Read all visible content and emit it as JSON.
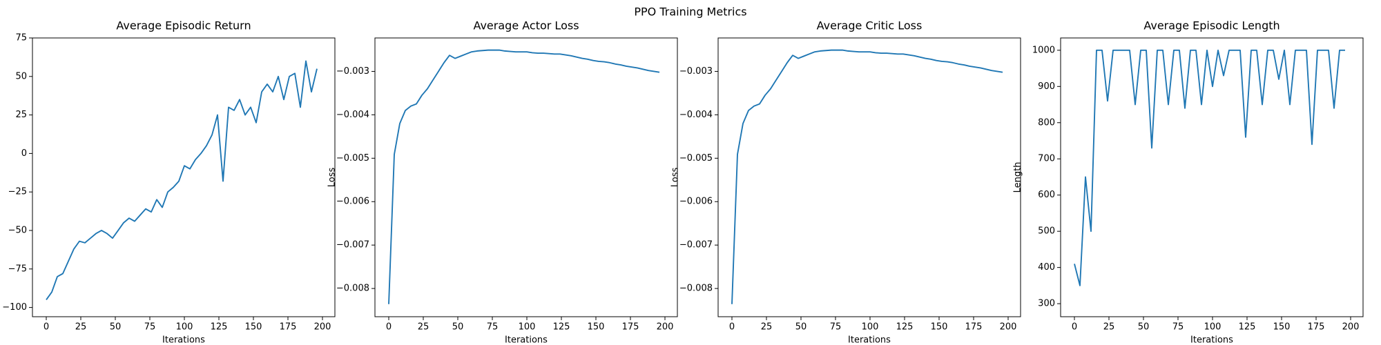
{
  "title": "PPO Training Metrics",
  "chart_data": [
    {
      "type": "line",
      "title": "Average Episodic Return",
      "xlabel": "Iterations",
      "color": "#1f77b4",
      "x": [
        0,
        4,
        8,
        12,
        16,
        20,
        24,
        28,
        32,
        36,
        40,
        44,
        48,
        52,
        56,
        60,
        64,
        68,
        72,
        76,
        80,
        84,
        88,
        92,
        96,
        100,
        104,
        108,
        112,
        116,
        120,
        124,
        128,
        132,
        136,
        140,
        144,
        148,
        152,
        156,
        160,
        164,
        168,
        172,
        176,
        180,
        184,
        188,
        192,
        196
      ],
      "values": [
        -95,
        -90,
        -80,
        -78,
        -70,
        -62,
        -57,
        -58,
        -55,
        -52,
        -50,
        -52,
        -55,
        -50,
        -45,
        -42,
        -44,
        -40,
        -36,
        -38,
        -30,
        -35,
        -25,
        -22,
        -18,
        -8,
        -10,
        -4,
        0,
        5,
        12,
        25,
        -18,
        30,
        28,
        35,
        25,
        30,
        20,
        40,
        45,
        40,
        50,
        35,
        50,
        52,
        30,
        60,
        40,
        55
      ],
      "xlim": [
        -10,
        209
      ],
      "ylim": [
        -106,
        75
      ],
      "xticks": [
        0,
        25,
        50,
        75,
        100,
        125,
        150,
        175,
        200
      ],
      "yticks": [
        {
          "value": -100,
          "label": "−100"
        },
        {
          "value": -75,
          "label": "−75"
        },
        {
          "value": -50,
          "label": "−50"
        },
        {
          "value": -25,
          "label": "−25"
        },
        0,
        25,
        50,
        75
      ]
    },
    {
      "type": "line",
      "title": "Average Actor Loss",
      "xlabel": "Iterations",
      "ylabel": "Loss",
      "color": "#1f77b4",
      "x": [
        0,
        4,
        8,
        12,
        16,
        20,
        24,
        28,
        32,
        36,
        40,
        44,
        48,
        52,
        56,
        60,
        64,
        68,
        72,
        76,
        80,
        84,
        88,
        92,
        96,
        100,
        104,
        108,
        112,
        116,
        120,
        124,
        128,
        132,
        136,
        140,
        144,
        148,
        152,
        156,
        160,
        164,
        168,
        172,
        176,
        180,
        184,
        188,
        192,
        196
      ],
      "values": [
        -0.00836,
        -0.00491,
        -0.0042,
        -0.0039,
        -0.0038,
        -0.00375,
        -0.00355,
        -0.0034,
        -0.0032,
        -0.003,
        -0.0028,
        -0.00263,
        -0.0027,
        -0.00265,
        -0.0026,
        -0.00255,
        -0.00253,
        -0.00252,
        -0.00251,
        -0.00251,
        -0.00251,
        -0.00253,
        -0.00254,
        -0.00255,
        -0.00255,
        -0.00255,
        -0.00257,
        -0.00258,
        -0.00258,
        -0.00259,
        -0.0026,
        -0.0026,
        -0.00262,
        -0.00264,
        -0.00267,
        -0.0027,
        -0.00272,
        -0.00275,
        -0.00277,
        -0.00278,
        -0.0028,
        -0.00283,
        -0.00285,
        -0.00288,
        -0.0029,
        -0.00292,
        -0.00295,
        -0.00298,
        -0.003,
        -0.00302
      ],
      "xlim": [
        -10,
        209
      ],
      "ylim": [
        -0.00865,
        -0.00223
      ],
      "xticks": [
        0,
        25,
        50,
        75,
        100,
        125,
        150,
        175,
        200
      ],
      "yticks": [
        {
          "value": -0.008,
          "label": "−0.008"
        },
        {
          "value": -0.007,
          "label": "−0.007"
        },
        {
          "value": -0.006,
          "label": "−0.006"
        },
        {
          "value": -0.005,
          "label": "−0.005"
        },
        {
          "value": -0.004,
          "label": "−0.004"
        },
        {
          "value": -0.003,
          "label": "−0.003"
        }
      ]
    },
    {
      "type": "line",
      "title": "Average Critic Loss",
      "xlabel": "Iterations",
      "ylabel": "Loss",
      "color": "#1f77b4",
      "x": [
        0,
        4,
        8,
        12,
        16,
        20,
        24,
        28,
        32,
        36,
        40,
        44,
        48,
        52,
        56,
        60,
        64,
        68,
        72,
        76,
        80,
        84,
        88,
        92,
        96,
        100,
        104,
        108,
        112,
        116,
        120,
        124,
        128,
        132,
        136,
        140,
        144,
        148,
        152,
        156,
        160,
        164,
        168,
        172,
        176,
        180,
        184,
        188,
        192,
        196
      ],
      "values": [
        -0.00836,
        -0.00491,
        -0.0042,
        -0.0039,
        -0.0038,
        -0.00375,
        -0.00355,
        -0.0034,
        -0.0032,
        -0.003,
        -0.0028,
        -0.00263,
        -0.0027,
        -0.00265,
        -0.0026,
        -0.00255,
        -0.00253,
        -0.00252,
        -0.00251,
        -0.00251,
        -0.00251,
        -0.00253,
        -0.00254,
        -0.00255,
        -0.00255,
        -0.00255,
        -0.00257,
        -0.00258,
        -0.00258,
        -0.00259,
        -0.0026,
        -0.0026,
        -0.00262,
        -0.00264,
        -0.00267,
        -0.0027,
        -0.00272,
        -0.00275,
        -0.00277,
        -0.00278,
        -0.0028,
        -0.00283,
        -0.00285,
        -0.00288,
        -0.0029,
        -0.00292,
        -0.00295,
        -0.00298,
        -0.003,
        -0.00302
      ],
      "xlim": [
        -10,
        209
      ],
      "ylim": [
        -0.00865,
        -0.00223
      ],
      "xticks": [
        0,
        25,
        50,
        75,
        100,
        125,
        150,
        175,
        200
      ],
      "yticks": [
        {
          "value": -0.008,
          "label": "−0.008"
        },
        {
          "value": -0.007,
          "label": "−0.007"
        },
        {
          "value": -0.006,
          "label": "−0.006"
        },
        {
          "value": -0.005,
          "label": "−0.005"
        },
        {
          "value": -0.004,
          "label": "−0.004"
        },
        {
          "value": -0.003,
          "label": "−0.003"
        }
      ]
    },
    {
      "type": "line",
      "title": "Average Episodic Length",
      "xlabel": "Iterations",
      "ylabel": "Length",
      "color": "#1f77b4",
      "x": [
        0,
        4,
        8,
        12,
        16,
        20,
        24,
        28,
        32,
        36,
        40,
        44,
        48,
        52,
        56,
        60,
        64,
        68,
        72,
        76,
        80,
        84,
        88,
        92,
        96,
        100,
        104,
        108,
        112,
        116,
        120,
        124,
        128,
        132,
        136,
        140,
        144,
        148,
        152,
        156,
        160,
        164,
        168,
        172,
        176,
        180,
        184,
        188,
        192,
        196
      ],
      "values": [
        410,
        350,
        650,
        500,
        1000,
        1000,
        860,
        1000,
        1000,
        1000,
        1000,
        850,
        1000,
        1000,
        730,
        1000,
        1000,
        850,
        1000,
        1000,
        840,
        1000,
        1000,
        850,
        1000,
        900,
        1000,
        930,
        1000,
        1000,
        1000,
        760,
        1000,
        1000,
        850,
        1000,
        1000,
        920,
        1000,
        850,
        1000,
        1000,
        1000,
        740,
        1000,
        1000,
        1000,
        840,
        1000,
        1000
      ],
      "xlim": [
        -10,
        209
      ],
      "ylim": [
        264,
        1034
      ],
      "xticks": [
        0,
        25,
        50,
        75,
        100,
        125,
        150,
        175,
        200
      ],
      "yticks": [
        300,
        400,
        500,
        600,
        700,
        800,
        900,
        1000
      ]
    }
  ]
}
